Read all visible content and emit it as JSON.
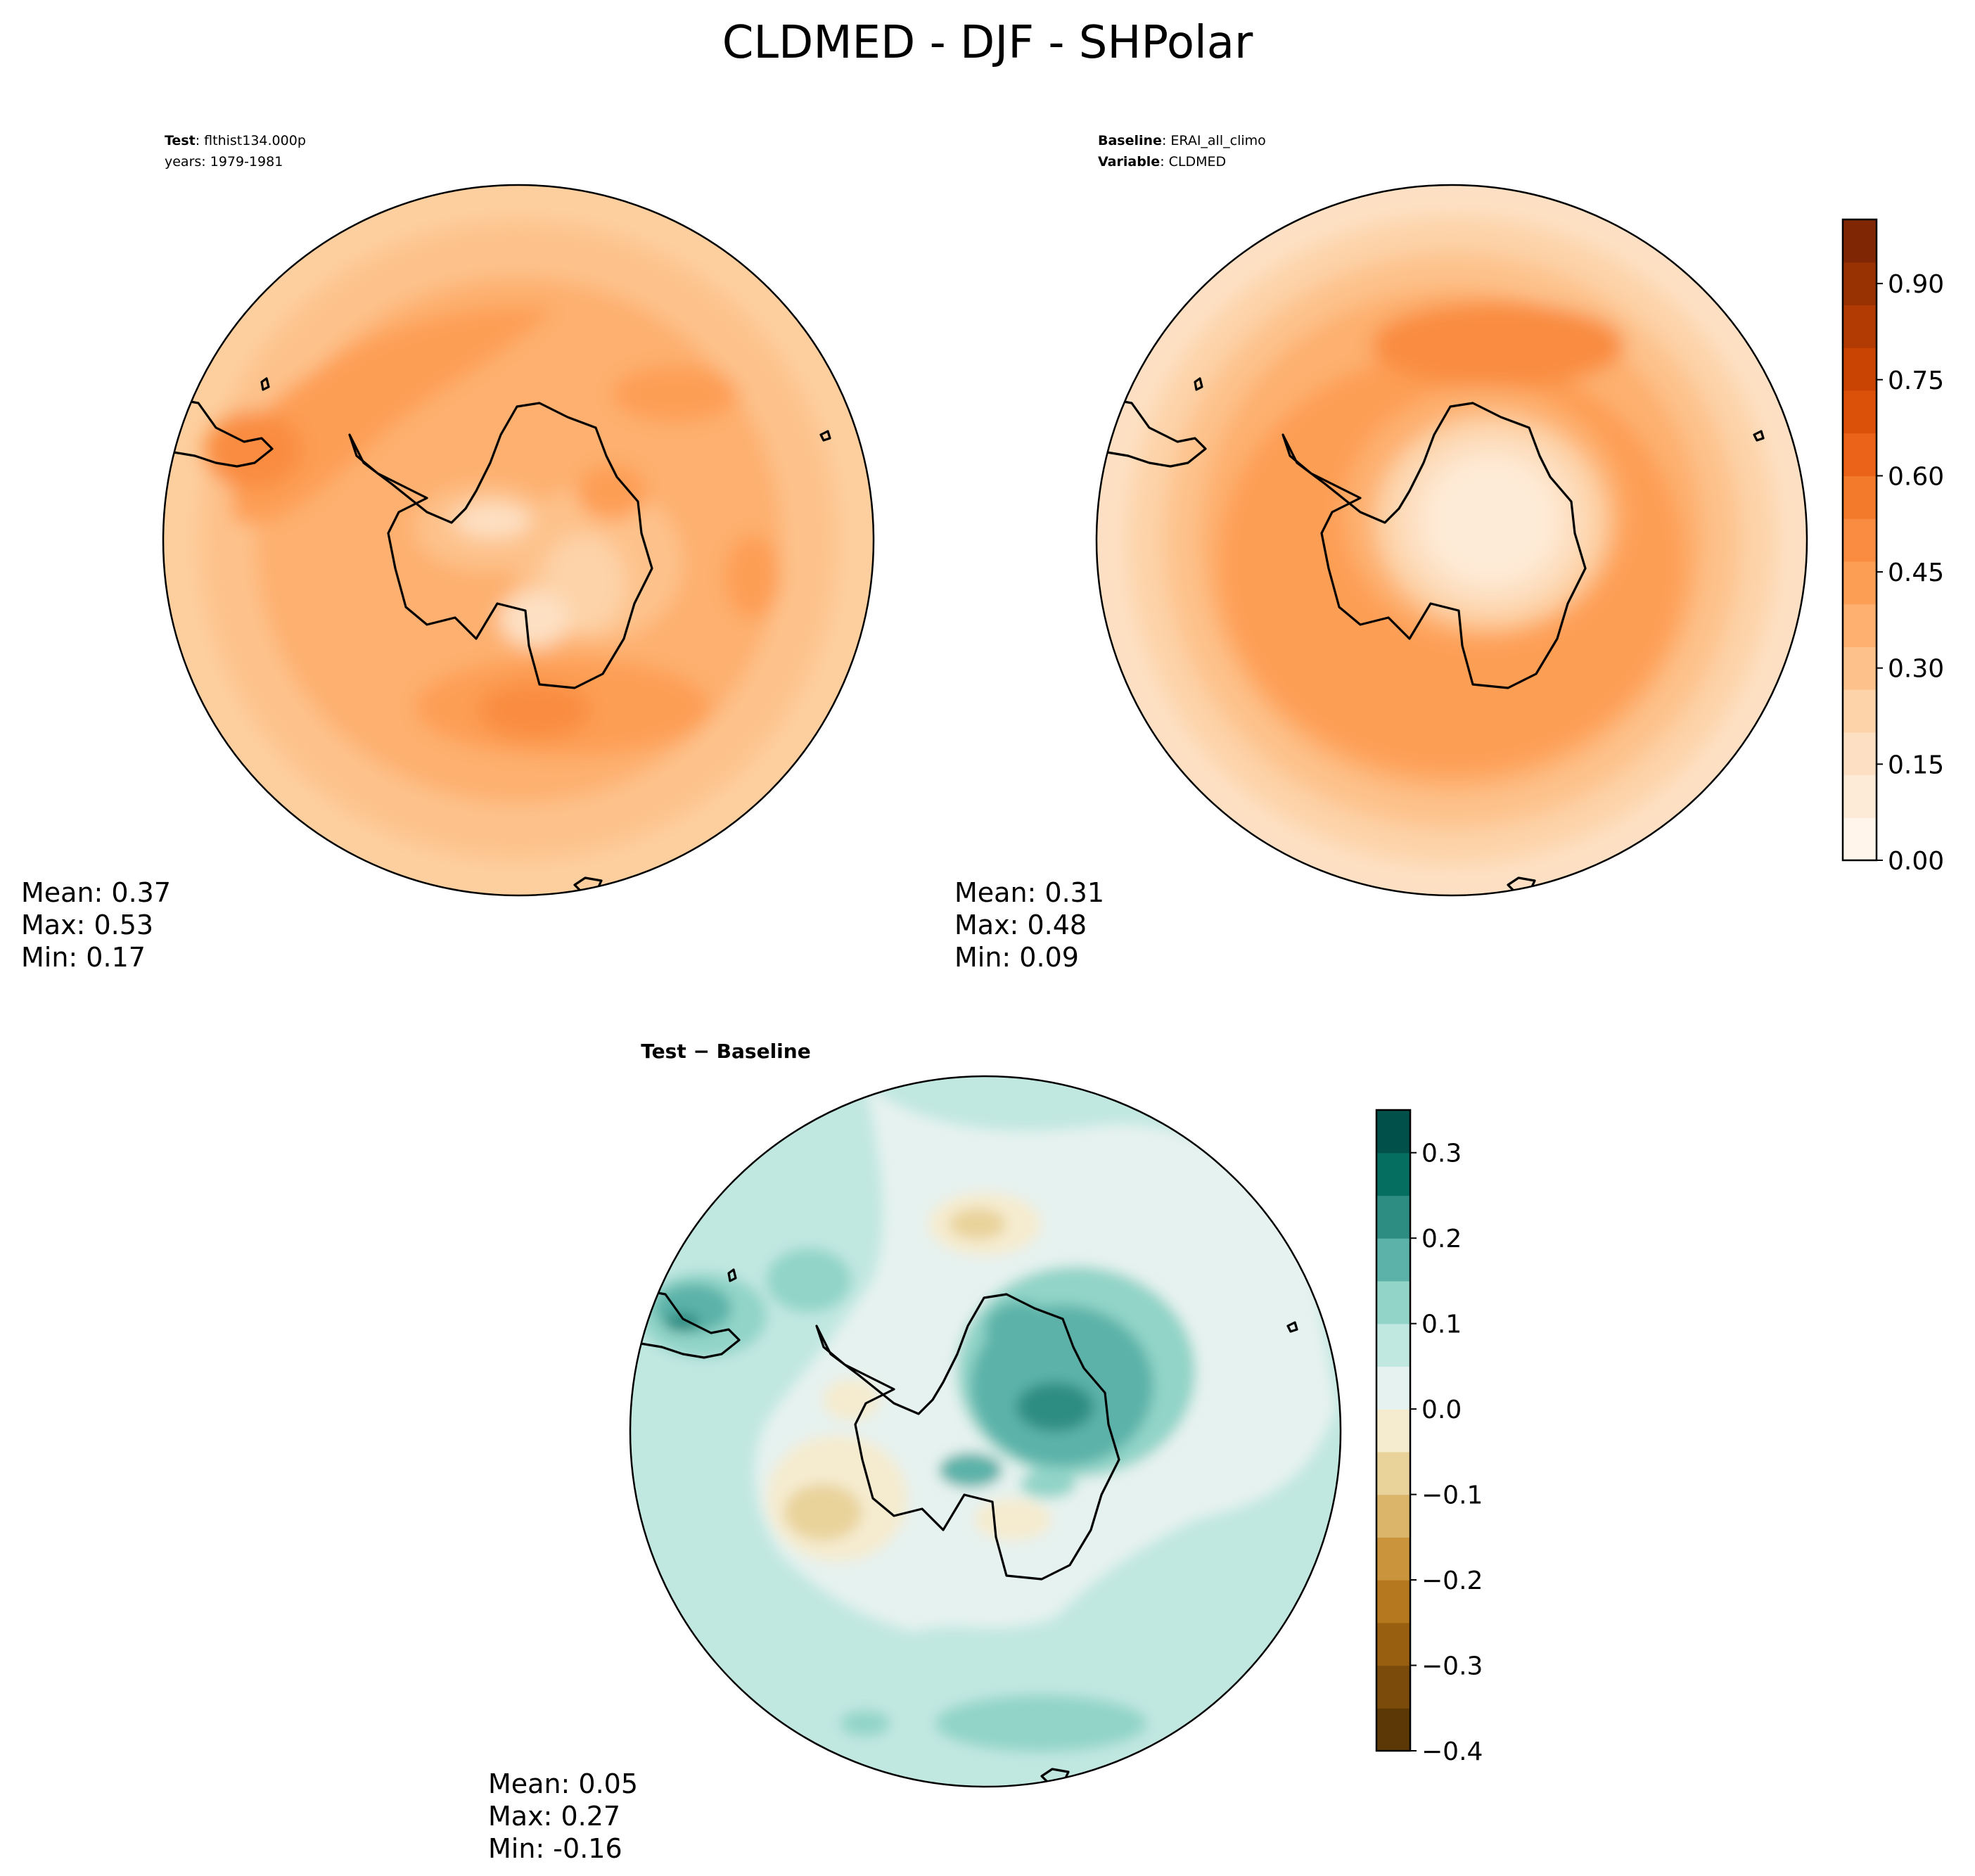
{
  "title": "CLDMED - DJF - SHPolar",
  "colors": {
    "sequential": [
      "#fff5eb",
      "#feebd7",
      "#fde0c3",
      "#fdd3a9",
      "#fdc28c",
      "#fdb070",
      "#fd9e55",
      "#f98c40",
      "#f3792b",
      "#ea6318",
      "#db510a",
      "#c94403",
      "#b13b03",
      "#983203",
      "#7f2704"
    ],
    "diverging": [
      "#5c3807",
      "#7a4b0b",
      "#995f11",
      "#b5781f",
      "#c9943b",
      "#dab56a",
      "#e9d39b",
      "#f5ebcf",
      "#e6f2ef",
      "#c1e7e1",
      "#92d4c8",
      "#5cb2a9",
      "#2e8d83",
      "#066d61",
      "#02504a"
    ],
    "coastline": "#000000",
    "map_border": "#000000"
  },
  "chart_data": [
    {
      "type": "heatmap",
      "panel": "test",
      "label_key": "Test",
      "label_value": ": flthist134.000p",
      "years_line": "years: 1979-1981",
      "stats": {
        "mean": "Mean:  0.37",
        "max": "Max:  0.53",
        "min": "Min:  0.17"
      },
      "mean": 0.37,
      "max": 0.53,
      "min": 0.17
    },
    {
      "type": "heatmap",
      "panel": "baseline",
      "label_key": "Baseline",
      "label_value": ": ERAI_all_climo",
      "variable_key": "Variable",
      "variable_value": ": CLDMED",
      "stats": {
        "mean": "Mean:  0.31",
        "max": "Max:  0.48",
        "min": "Min:  0.09"
      },
      "mean": 0.31,
      "max": 0.48,
      "min": 0.09
    },
    {
      "type": "heatmap",
      "panel": "difference",
      "title": "Test − Baseline",
      "stats": {
        "mean": "Mean:  0.05",
        "max": "Max:  0.27",
        "min": "Min: -0.16"
      },
      "mean": 0.05,
      "max": 0.27,
      "min": -0.16
    }
  ],
  "colorbars": {
    "main": {
      "range": [
        0,
        1.0
      ],
      "levels": 15,
      "ticks": [
        {
          "value": 0.0,
          "label": "0.00"
        },
        {
          "value": 0.15,
          "label": "0.15"
        },
        {
          "value": 0.3,
          "label": "0.30"
        },
        {
          "value": 0.45,
          "label": "0.45"
        },
        {
          "value": 0.6,
          "label": "0.60"
        },
        {
          "value": 0.75,
          "label": "0.75"
        },
        {
          "value": 0.9,
          "label": "0.90"
        }
      ]
    },
    "diff": {
      "range": [
        -0.4,
        0.35
      ],
      "levels": 15,
      "ticks": [
        {
          "value": -0.4,
          "label": "−0.4"
        },
        {
          "value": -0.3,
          "label": "−0.3"
        },
        {
          "value": -0.2,
          "label": "−0.2"
        },
        {
          "value": -0.1,
          "label": "−0.1"
        },
        {
          "value": 0.0,
          "label": "0.0"
        },
        {
          "value": 0.1,
          "label": "0.1"
        },
        {
          "value": 0.2,
          "label": "0.2"
        },
        {
          "value": 0.3,
          "label": "0.3"
        }
      ]
    }
  }
}
